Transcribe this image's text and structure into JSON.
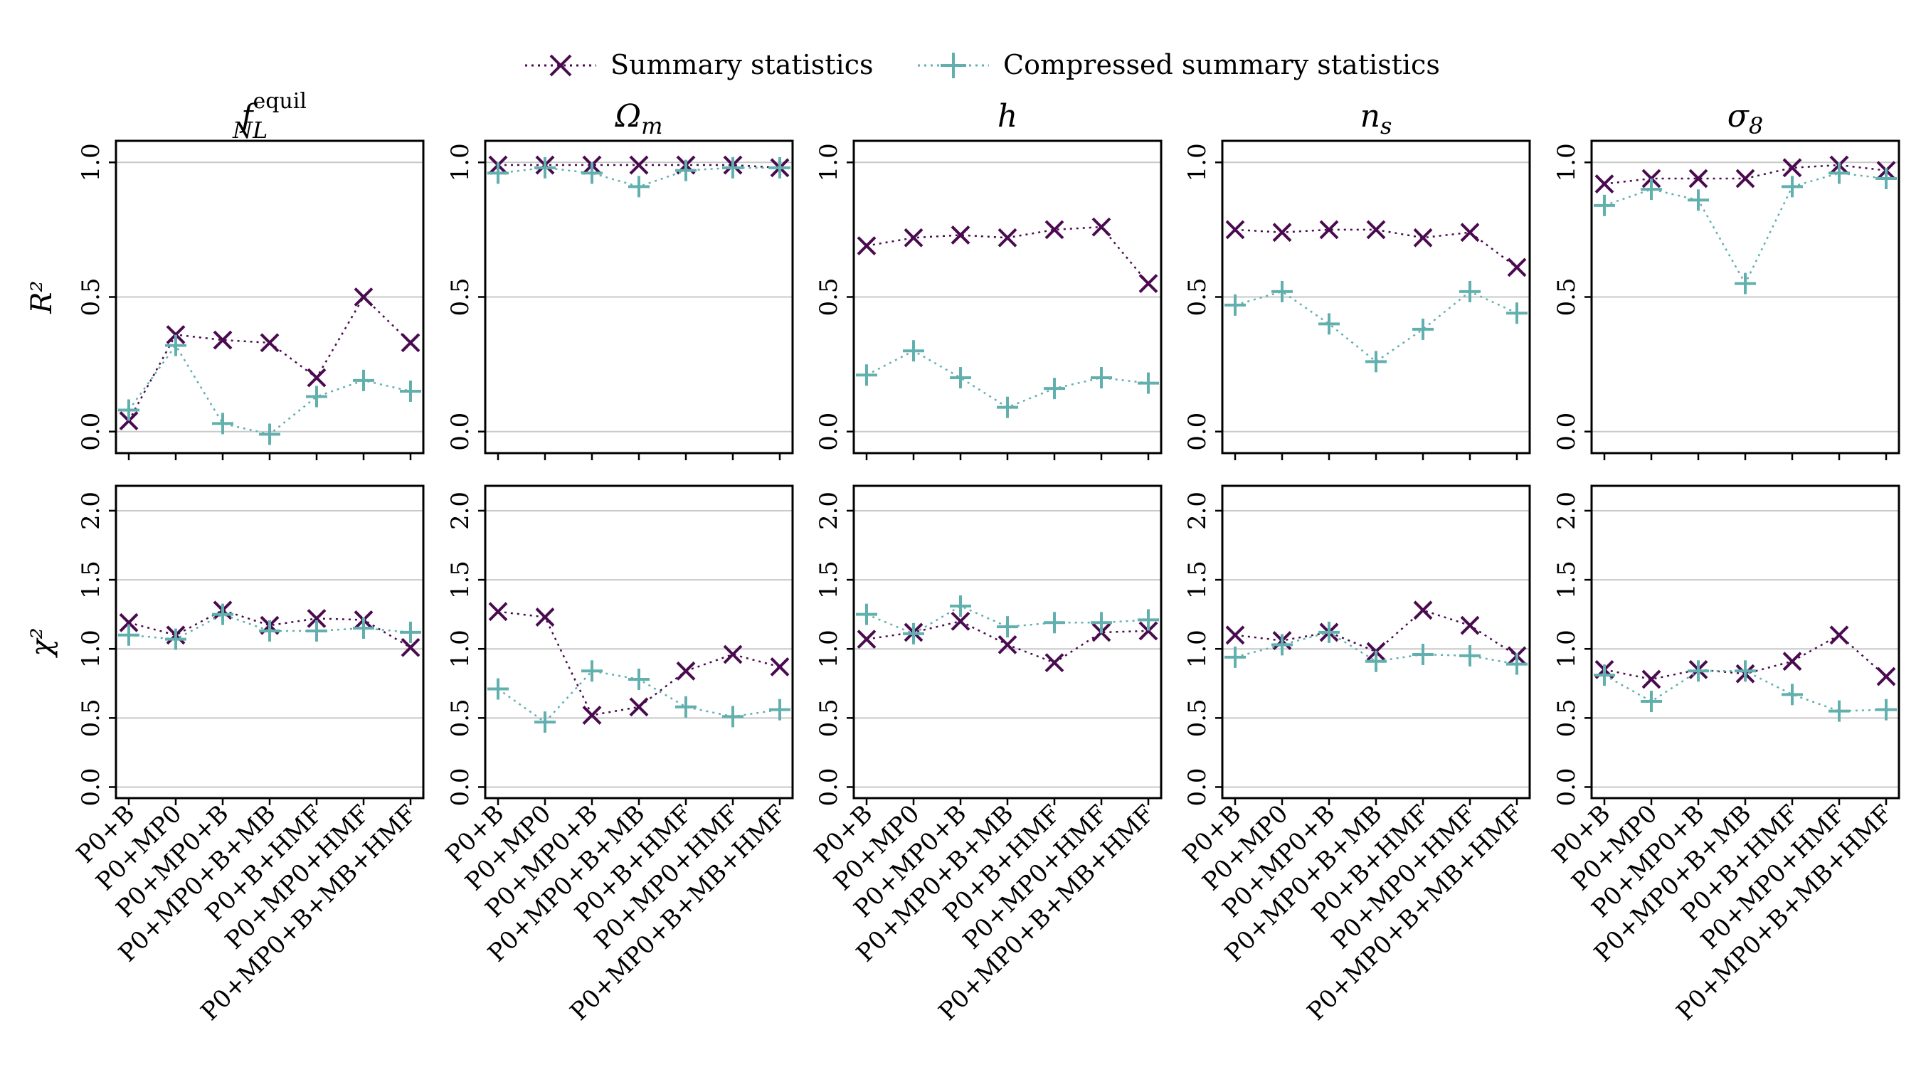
{
  "legend": [
    {
      "label": "Summary statistics",
      "marker": "x",
      "color": "#4a0a4f"
    },
    {
      "label": "Compressed summary statistics",
      "marker": "+",
      "color": "#62b0ae"
    }
  ],
  "chart_data": {
    "type": "line",
    "categories": [
      "P0+B",
      "P0+MP0",
      "P0+MP0+B",
      "P0+MP0+B+MB",
      "P0+B+HMF",
      "P0+MP0+HMF",
      "P0+MP0+B+MB+HMF"
    ],
    "rows": [
      {
        "ylabel": "R²",
        "ylim": [
          -0.08,
          1.08
        ],
        "yticks": [
          "0.0",
          "0.5",
          "1.0"
        ]
      },
      {
        "ylabel": "χ²",
        "ylim": [
          -0.08,
          2.18
        ],
        "yticks": [
          "0.0",
          "0.5",
          "1.0",
          "1.5",
          "2.0"
        ]
      }
    ],
    "panels": [
      {
        "title": "f_NL^equil",
        "title_main": "f",
        "title_sub": "NL",
        "title_sup": "equil",
        "R2": {
          "Summary statistics": [
            0.04,
            0.36,
            0.34,
            0.33,
            0.2,
            0.5,
            0.33
          ],
          "Compressed summary statistics": [
            0.08,
            0.32,
            0.03,
            -0.01,
            0.13,
            0.19,
            0.15
          ]
        },
        "chi2": {
          "Summary statistics": [
            1.19,
            1.1,
            1.28,
            1.17,
            1.22,
            1.21,
            1.01
          ],
          "Compressed summary statistics": [
            1.1,
            1.07,
            1.25,
            1.13,
            1.13,
            1.15,
            1.12
          ]
        }
      },
      {
        "title": "Ω_m",
        "title_main": "Ω",
        "title_sub": "m",
        "title_sup": "",
        "R2": {
          "Summary statistics": [
            0.99,
            0.99,
            0.99,
            0.99,
            0.99,
            0.99,
            0.98
          ],
          "Compressed summary statistics": [
            0.96,
            0.98,
            0.96,
            0.91,
            0.97,
            0.98,
            0.98
          ]
        },
        "chi2": {
          "Summary statistics": [
            1.27,
            1.23,
            0.52,
            0.58,
            0.84,
            0.96,
            0.87
          ],
          "Compressed summary statistics": [
            0.71,
            0.47,
            0.84,
            0.78,
            0.58,
            0.51,
            0.56
          ]
        }
      },
      {
        "title": "h",
        "title_main": "h",
        "title_sub": "",
        "title_sup": "",
        "R2": {
          "Summary statistics": [
            0.69,
            0.72,
            0.73,
            0.72,
            0.75,
            0.76,
            0.55
          ],
          "Compressed summary statistics": [
            0.21,
            0.3,
            0.2,
            0.09,
            0.16,
            0.2,
            0.18
          ]
        },
        "chi2": {
          "Summary statistics": [
            1.07,
            1.12,
            1.2,
            1.03,
            0.9,
            1.12,
            1.13
          ],
          "Compressed summary statistics": [
            1.25,
            1.11,
            1.31,
            1.16,
            1.19,
            1.19,
            1.21
          ]
        }
      },
      {
        "title": "n_s",
        "title_main": "n",
        "title_sub": "s",
        "title_sup": "",
        "R2": {
          "Summary statistics": [
            0.75,
            0.74,
            0.75,
            0.75,
            0.72,
            0.74,
            0.61
          ],
          "Compressed summary statistics": [
            0.47,
            0.52,
            0.4,
            0.26,
            0.38,
            0.52,
            0.44
          ]
        },
        "chi2": {
          "Summary statistics": [
            1.1,
            1.06,
            1.12,
            0.98,
            1.28,
            1.17,
            0.95
          ],
          "Compressed summary statistics": [
            0.94,
            1.03,
            1.12,
            0.91,
            0.96,
            0.95,
            0.89
          ]
        }
      },
      {
        "title": "σ_8",
        "title_main": "σ",
        "title_sub": "8",
        "title_sup": "",
        "R2": {
          "Summary statistics": [
            0.92,
            0.94,
            0.94,
            0.94,
            0.98,
            0.99,
            0.97
          ],
          "Compressed summary statistics": [
            0.84,
            0.9,
            0.86,
            0.55,
            0.91,
            0.96,
            0.94
          ]
        },
        "chi2": {
          "Summary statistics": [
            0.85,
            0.78,
            0.85,
            0.82,
            0.91,
            1.1,
            0.8
          ],
          "Compressed summary statistics": [
            0.81,
            0.62,
            0.84,
            0.84,
            0.67,
            0.55,
            0.56
          ]
        }
      }
    ],
    "grid": true,
    "legend_position": "top-center"
  }
}
